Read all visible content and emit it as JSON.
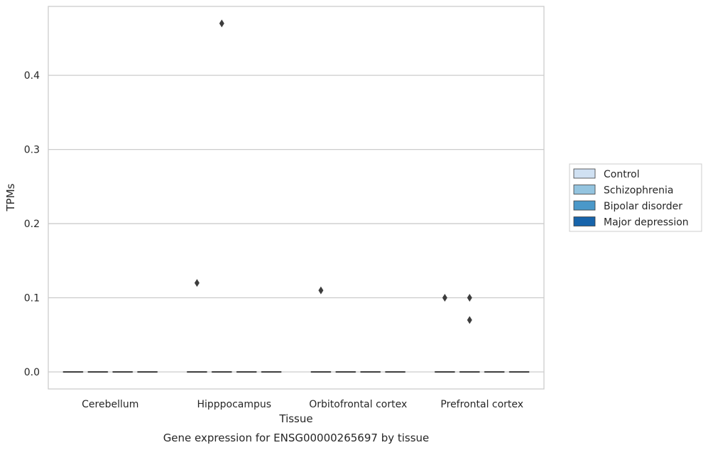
{
  "chart_data": {
    "type": "box",
    "title": "",
    "xlabel": "Tissue",
    "ylabel": "TPMs",
    "caption": "Gene expression for ENSG00000265697 by tissue",
    "categories": [
      "Cerebellum",
      "Hipppocampus",
      "Orbitofrontal cortex",
      "Prefrontal cortex"
    ],
    "yticks": [
      "0.0",
      "0.1",
      "0.2",
      "0.3",
      "0.4"
    ],
    "ylim": [
      -0.023,
      0.493
    ],
    "grid": true,
    "legend_position": "right",
    "series": [
      {
        "name": "Control",
        "color": "#d0e1f2"
      },
      {
        "name": "Schizophrenia",
        "color": "#94c4df"
      },
      {
        "name": "Bipolar disorder",
        "color": "#4a98c9"
      },
      {
        "name": "Major depression",
        "color": "#1764ab"
      }
    ],
    "boxes": [
      {
        "category": "Cerebellum",
        "median": 0.0,
        "q1": 0.0,
        "q3": 0.0,
        "outliers": []
      },
      {
        "category": "Hipppocampus",
        "median": 0.0,
        "q1": 0.0,
        "q3": 0.0,
        "outliers": [
          {
            "series": "Control",
            "y": 0.12
          },
          {
            "series": "Schizophrenia",
            "y": 0.47
          }
        ]
      },
      {
        "category": "Orbitofrontal cortex",
        "median": 0.0,
        "q1": 0.0,
        "q3": 0.0,
        "outliers": [
          {
            "series": "Control",
            "y": 0.11
          }
        ]
      },
      {
        "category": "Prefrontal cortex",
        "median": 0.0,
        "q1": 0.0,
        "q3": 0.0,
        "outliers": [
          {
            "series": "Control",
            "y": 0.1
          },
          {
            "series": "Schizophrenia",
            "y": 0.1
          },
          {
            "series": "Schizophrenia",
            "y": 0.07
          }
        ]
      }
    ]
  }
}
